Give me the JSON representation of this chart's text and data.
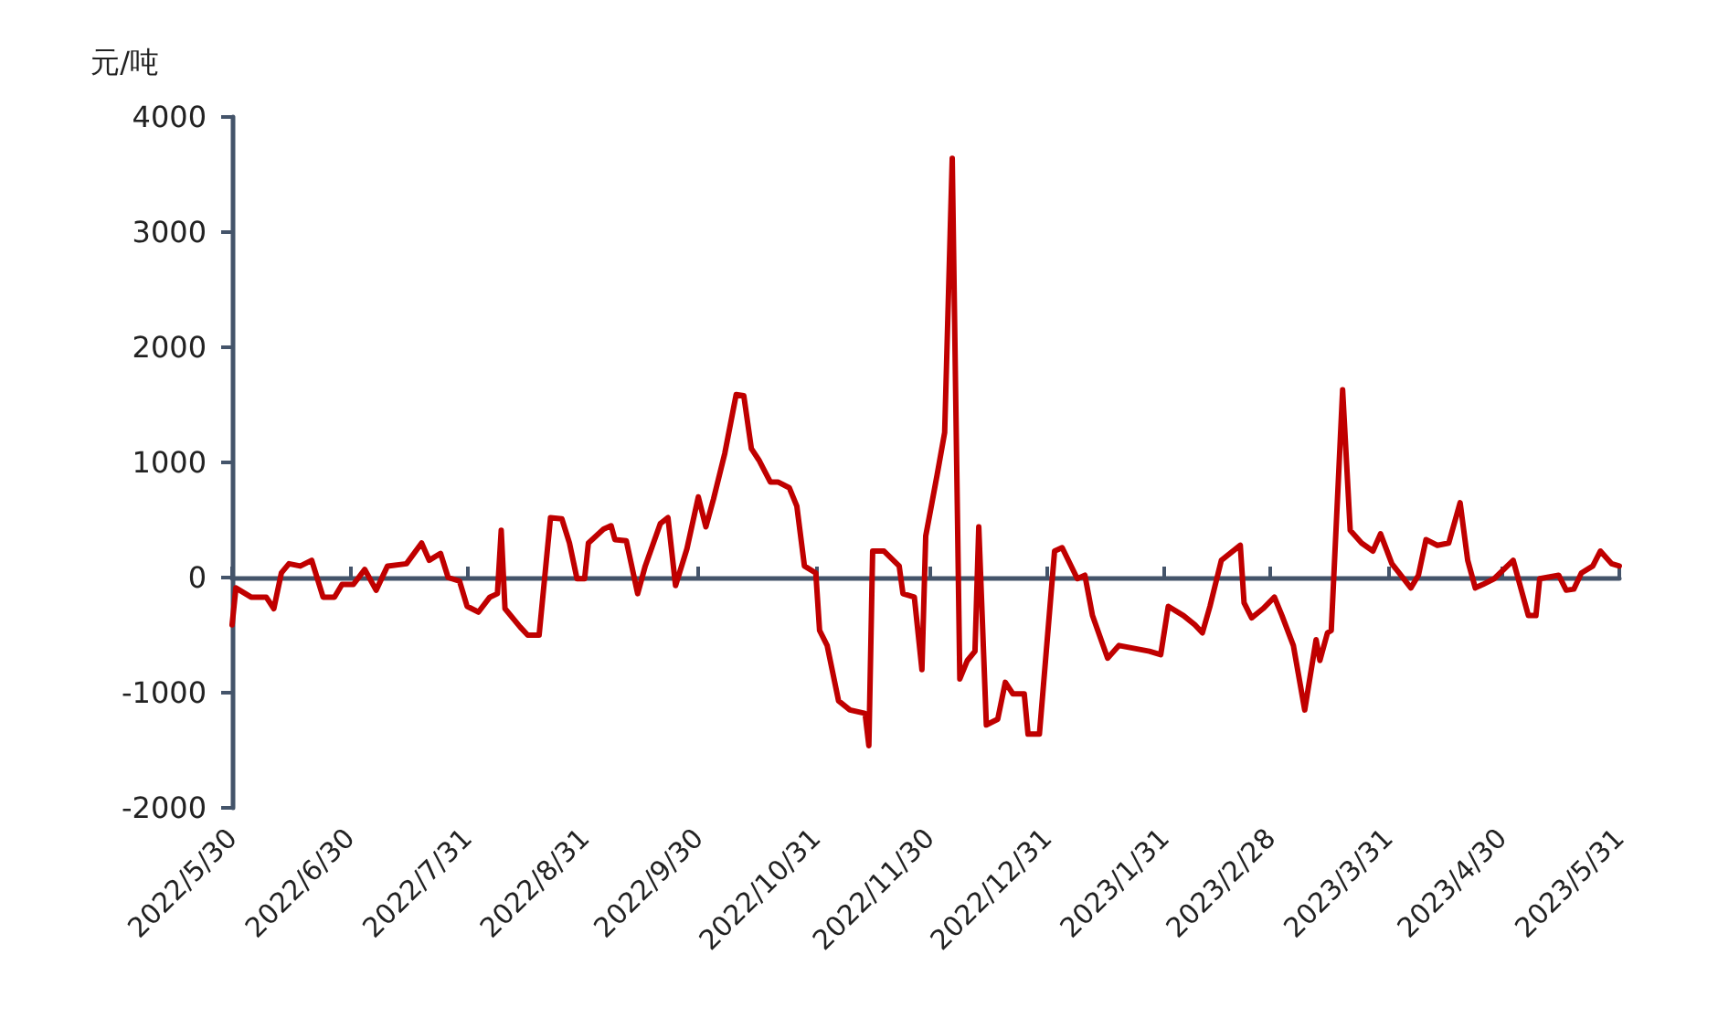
{
  "chart_data": {
    "type": "line",
    "ylabel": "元/吨",
    "xlim": [
      "2022-05-30",
      "2023-05-31"
    ],
    "ylim": [
      -2000,
      4000
    ],
    "yticks": [
      -2000,
      -1000,
      0,
      1000,
      2000,
      3000,
      4000
    ],
    "xticks": [
      {
        "value": "2022-05-30",
        "label": "2022/5/30"
      },
      {
        "value": "2022-06-30",
        "label": "2022/6/30"
      },
      {
        "value": "2022-07-31",
        "label": "2022/7/31"
      },
      {
        "value": "2022-08-31",
        "label": "2022/8/31"
      },
      {
        "value": "2022-09-30",
        "label": "2022/9/30"
      },
      {
        "value": "2022-10-31",
        "label": "2022/10/31"
      },
      {
        "value": "2022-11-30",
        "label": "2022/11/30"
      },
      {
        "value": "2022-12-31",
        "label": "2022/12/31"
      },
      {
        "value": "2023-01-31",
        "label": "2023/1/31"
      },
      {
        "value": "2023-02-28",
        "label": "2023/2/28"
      },
      {
        "value": "2023-03-31",
        "label": "2023/3/31"
      },
      {
        "value": "2023-04-30",
        "label": "2023/4/30"
      },
      {
        "value": "2023-05-31",
        "label": "2023/5/31"
      }
    ],
    "marker": "none",
    "line_style": "solid",
    "series": [
      {
        "color": "#c00000",
        "x": [
          "2022-05-30",
          "2022-05-31",
          "2022-06-04",
          "2022-06-08",
          "2022-06-10",
          "2022-06-12",
          "2022-06-14",
          "2022-06-17",
          "2022-06-20",
          "2022-06-23",
          "2022-06-26",
          "2022-06-28",
          "2022-07-01",
          "2022-07-04",
          "2022-07-07",
          "2022-07-10",
          "2022-07-15",
          "2022-07-19",
          "2022-07-21",
          "2022-07-24",
          "2022-07-26",
          "2022-07-29",
          "2022-07-31",
          "2022-08-03",
          "2022-08-06",
          "2022-08-08",
          "2022-08-09",
          "2022-08-10",
          "2022-08-14",
          "2022-08-16",
          "2022-08-19",
          "2022-08-22",
          "2022-08-25",
          "2022-08-27",
          "2022-08-29",
          "2022-08-31",
          "2022-09-01",
          "2022-09-05",
          "2022-09-07",
          "2022-09-08",
          "2022-09-11",
          "2022-09-14",
          "2022-09-16",
          "2022-09-20",
          "2022-09-22",
          "2022-09-24",
          "2022-09-27",
          "2022-09-30",
          "2022-10-02",
          "2022-10-04",
          "2022-10-07",
          "2022-10-10",
          "2022-10-12",
          "2022-10-14",
          "2022-10-16",
          "2022-10-19",
          "2022-10-21",
          "2022-10-24",
          "2022-10-26",
          "2022-10-28",
          "2022-10-31",
          "2022-11-01",
          "2022-11-03",
          "2022-11-06",
          "2022-11-09",
          "2022-11-13",
          "2022-11-14",
          "2022-11-15",
          "2022-11-18",
          "2022-11-22",
          "2022-11-23",
          "2022-11-26",
          "2022-11-28",
          "2022-11-29",
          "2022-12-02",
          "2022-12-04",
          "2022-12-06",
          "2022-12-08",
          "2022-12-10",
          "2022-12-12",
          "2022-12-13",
          "2022-12-15",
          "2022-12-18",
          "2022-12-20",
          "2022-12-22",
          "2022-12-25",
          "2022-12-26",
          "2022-12-29",
          "2023-01-02",
          "2023-01-04",
          "2023-01-08",
          "2023-01-10",
          "2023-01-12",
          "2023-01-16",
          "2023-01-19",
          "2023-01-27",
          "2023-01-30",
          "2023-02-01",
          "2023-02-05",
          "2023-02-08",
          "2023-02-10",
          "2023-02-12",
          "2023-02-15",
          "2023-02-20",
          "2023-02-21",
          "2023-02-23",
          "2023-02-26",
          "2023-03-01",
          "2023-03-03",
          "2023-03-06",
          "2023-03-09",
          "2023-03-12",
          "2023-03-13",
          "2023-03-15",
          "2023-03-16",
          "2023-03-19",
          "2023-03-21",
          "2023-03-24",
          "2023-03-27",
          "2023-03-29",
          "2023-04-01",
          "2023-04-06",
          "2023-04-08",
          "2023-04-10",
          "2023-04-13",
          "2023-04-16",
          "2023-04-19",
          "2023-04-21",
          "2023-04-23",
          "2023-04-25",
          "2023-04-28",
          "2023-05-03",
          "2023-05-07",
          "2023-05-09",
          "2023-05-10",
          "2023-05-15",
          "2023-05-17",
          "2023-05-19",
          "2023-05-21",
          "2023-05-24",
          "2023-05-26",
          "2023-05-29",
          "2023-05-31"
        ],
        "values": [
          -410,
          -90,
          -170,
          -170,
          -270,
          40,
          120,
          100,
          150,
          -170,
          -170,
          -60,
          -60,
          70,
          -110,
          100,
          120,
          300,
          150,
          210,
          0,
          -30,
          -250,
          -300,
          -170,
          -140,
          410,
          -270,
          -430,
          -500,
          -500,
          520,
          510,
          300,
          -10,
          -10,
          300,
          420,
          450,
          330,
          320,
          -140,
          100,
          470,
          520,
          -70,
          250,
          700,
          440,
          680,
          1080,
          1590,
          1580,
          1120,
          1020,
          830,
          830,
          780,
          620,
          100,
          40,
          -460,
          -590,
          -1070,
          -1150,
          -1180,
          -1460,
          230,
          230,
          100,
          -140,
          -170,
          -800,
          360,
          890,
          1260,
          3640,
          -880,
          -720,
          -640,
          440,
          -1280,
          -1230,
          -910,
          -1010,
          -1010,
          -1360,
          -1360,
          230,
          260,
          -10,
          20,
          -330,
          -700,
          -590,
          -640,
          -670,
          -250,
          -330,
          -410,
          -480,
          -250,
          150,
          280,
          -220,
          -350,
          -270,
          -170,
          -330,
          -590,
          -1150,
          -540,
          -720,
          -480,
          -460,
          1630,
          410,
          300,
          230,
          380,
          120,
          -90,
          20,
          330,
          280,
          300,
          650,
          150,
          -90,
          -60,
          -10,
          150,
          -330,
          -330,
          -10,
          20,
          -110,
          -100,
          40,
          100,
          230,
          120,
          100
        ]
      }
    ]
  }
}
